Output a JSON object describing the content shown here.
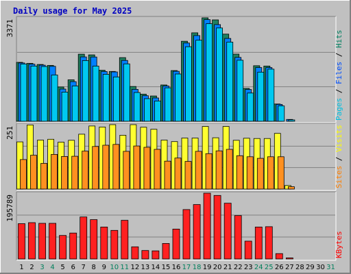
{
  "chart_data": {
    "type": "bar",
    "title": "Daily usage for May 2025",
    "categories": [
      "1",
      "2",
      "3",
      "4",
      "5",
      "6",
      "7",
      "8",
      "9",
      "10",
      "11",
      "12",
      "13",
      "14",
      "15",
      "16",
      "17",
      "18",
      "19",
      "20",
      "21",
      "22",
      "23",
      "24",
      "25",
      "26",
      "27",
      "28",
      "29",
      "30",
      "31"
    ],
    "weekend_days": [
      "3",
      "4",
      "10",
      "11",
      "17",
      "18",
      "24",
      "25",
      "31"
    ],
    "panels": [
      {
        "name": "hits-files-pages",
        "max_label": "3371",
        "ymax": 3371,
        "right_label": [
          {
            "text": "Pages",
            "color": "#00c0e0"
          },
          {
            "text": " / ",
            "color": "#000000"
          },
          {
            "text": "Files",
            "color": "#0050ff"
          },
          {
            "text": " / ",
            "color": "#000000"
          },
          {
            "text": "Hits",
            "color": "#008060"
          }
        ],
        "series": [
          {
            "name": "Hits",
            "color": "#208060",
            "values": [
              1920,
              1887,
              1850,
              1819,
              1117,
              1351,
              2186,
              2163,
              1664,
              1624,
              2075,
              1134,
              883,
              823,
              1183,
              1653,
              2607,
              2881,
              3371,
              3304,
              2839,
              2187,
              1072,
              1810,
              1800,
              562,
              0,
              0,
              0,
              0,
              0
            ]
          },
          {
            "name": "Files",
            "color": "#0080ff",
            "values": [
              1900,
              1860,
              1828,
              1790,
              1050,
              1290,
              2096,
              2095,
              1621,
              1607,
              1983,
              1040,
              832,
              760,
              1150,
              1628,
              2550,
              2793,
              3312,
              3150,
              2700,
              2080,
              1035,
              1750,
              1750,
              550,
              60,
              0,
              0,
              0,
              0
            ]
          },
          {
            "name": "Pages",
            "color": "#00c8f0",
            "values": [
              1867,
              1800,
              1783,
              1510,
              952,
              1150,
              1978,
              1798,
              1530,
              1445,
              1870,
              938,
              736,
              660,
              1090,
              1540,
              2430,
              2640,
              3180,
              3040,
              2580,
              1990,
              920,
              1600,
              1700,
              500,
              45,
              0,
              0,
              0,
              0
            ]
          }
        ]
      },
      {
        "name": "visits-sites",
        "max_label": "251",
        "ymax": 251,
        "right_label": [
          {
            "text": "Sites",
            "color": "#ff8000"
          },
          {
            "text": " / ",
            "color": "#000000"
          },
          {
            "text": "Visits",
            "color": "#ffff00"
          }
        ],
        "series": [
          {
            "name": "Visits",
            "color": "#ffff30",
            "values": [
              184,
              250,
              191,
              194,
              183,
              190,
              214,
              246,
              242,
              251,
              210,
              251,
              241,
              233,
              191,
              185,
              199,
              199,
              244,
              200,
              244,
              190,
              198,
              197,
              197,
              217,
              14,
              0,
              0,
              0,
              0
            ]
          },
          {
            "name": "Sites",
            "color": "#ff9020",
            "values": [
              115,
              132,
              100,
              135,
              127,
              128,
              148,
              166,
              171,
              174,
              147,
              168,
              163,
              155,
              109,
              121,
              108,
              147,
              138,
              149,
              155,
              130,
              126,
              120,
              126,
              126,
              9,
              0,
              0,
              0,
              0
            ]
          }
        ]
      },
      {
        "name": "kbytes",
        "max_label": "195789",
        "ymax": 195789,
        "right_label": [
          {
            "text": "KBytes",
            "color": "#ff0000"
          }
        ],
        "series": [
          {
            "name": "KBytes",
            "color": "#ff2020",
            "values": [
              105000,
              108000,
              106000,
              106000,
              70000,
              77000,
              125000,
              117000,
              95000,
              85000,
              115000,
              36000,
              25000,
              24000,
              46000,
              89000,
              147000,
              162000,
              195789,
              189000,
              166000,
              129000,
              53000,
              95000,
              96000,
              16000,
              3000,
              0,
              0,
              0,
              0
            ]
          }
        ]
      }
    ]
  }
}
